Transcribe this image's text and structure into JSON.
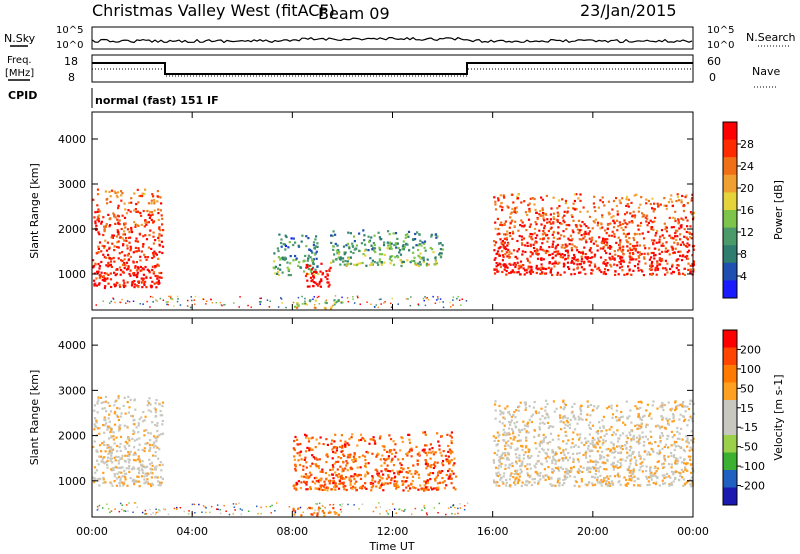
{
  "header": {
    "title": "Christmas Valley West (fitACF)",
    "beam": "Beam 09",
    "date": "23/Jan/2015"
  },
  "aux_panels": {
    "nsky_label": "N.Sky",
    "nsearch_label": "N.Search",
    "noise_ticks": [
      "10^5",
      "10^0"
    ],
    "freq_label_1": "Freq.",
    "freq_label_2": "[MHz]",
    "freq_ticks": [
      "18",
      "8"
    ],
    "nave_label": "Nave",
    "nave_ticks": [
      "60",
      "0"
    ],
    "cpid_label": "CPID",
    "cpid_value": "normal (fast) 151 IF"
  },
  "colors": {
    "power_scale": [
      "#1a1aff",
      "#1f4fb0",
      "#2e7d6e",
      "#4a9a6a",
      "#7cc44a",
      "#e6d23a",
      "#f0a030",
      "#f07018",
      "#ff2a00",
      "#ff0000"
    ],
    "velocity_scale": [
      "#ff0000",
      "#ff4500",
      "#ff7a00",
      "#ffa020",
      "#c8c8c0",
      "#c8c8c0",
      "#9ad04a",
      "#3cb030",
      "#2060c0",
      "#1a1ab0"
    ]
  },
  "chart_data": [
    {
      "type": "heatmap",
      "panel": "power",
      "xlabel": "Time UT",
      "ylabel": "Slant Range [km]",
      "x_ticks": [
        "00:00",
        "04:00",
        "08:00",
        "12:00",
        "16:00",
        "20:00",
        "00:00"
      ],
      "y_ticks": [
        "1000",
        "2000",
        "3000",
        "4000"
      ],
      "xlim_hours": [
        0,
        24
      ],
      "ylim_km": [
        200,
        4600
      ],
      "colorbar_label": "Power [dB]",
      "colorbar_ticks": [
        "4",
        "8",
        "12",
        "16",
        "20",
        "24",
        "28"
      ],
      "regions": [
        {
          "t0": 0.0,
          "t1": 2.8,
          "r0": 700,
          "r1": 2900,
          "level": 0.85
        },
        {
          "t0": 7.2,
          "t1": 9.0,
          "r0": 1000,
          "r1": 1900,
          "level": 0.3
        },
        {
          "t0": 8.5,
          "t1": 9.5,
          "r0": 700,
          "r1": 1300,
          "level": 0.95
        },
        {
          "t0": 9.5,
          "t1": 14.0,
          "r0": 1200,
          "r1": 2000,
          "level": 0.35
        },
        {
          "t0": 16.0,
          "t1": 24.0,
          "r0": 1000,
          "r1": 2800,
          "level": 0.85
        },
        {
          "t0": 8.0,
          "t1": 10.0,
          "r0": 250,
          "r1": 450,
          "level": 0.55
        }
      ]
    },
    {
      "type": "heatmap",
      "panel": "velocity",
      "xlabel": "Time UT",
      "ylabel": "Slant Range [km]",
      "x_ticks": [
        "00:00",
        "04:00",
        "08:00",
        "12:00",
        "16:00",
        "20:00",
        "00:00"
      ],
      "y_ticks": [
        "1000",
        "2000",
        "3000",
        "4000"
      ],
      "xlim_hours": [
        0,
        24
      ],
      "ylim_km": [
        200,
        4600
      ],
      "colorbar_label": "Velocity [m s-1]",
      "colorbar_ticks": [
        "200",
        "100",
        "50",
        "15",
        "-15",
        "-50",
        "-100",
        "-200"
      ],
      "regions": [
        {
          "t0": 0.0,
          "t1": 2.8,
          "r0": 900,
          "r1": 2900,
          "level": 0.45
        },
        {
          "t0": 8.0,
          "t1": 14.5,
          "r0": 800,
          "r1": 2100,
          "level": 0.2
        },
        {
          "t0": 16.0,
          "t1": 24.0,
          "r0": 900,
          "r1": 2800,
          "level": 0.45
        },
        {
          "t0": 8.0,
          "t1": 10.0,
          "r0": 250,
          "r1": 450,
          "level": 0.25
        }
      ]
    }
  ]
}
